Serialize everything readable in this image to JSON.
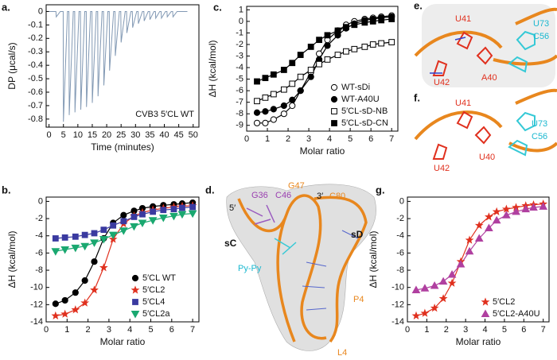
{
  "chart_data": [
    {
      "type": "line",
      "panel": "a.",
      "xlabel": "Time (minutes)",
      "ylabel": "DP (μcal/s)",
      "annotation": "CVB3 5′CL WT",
      "color": "#8299b4",
      "xlim": [
        -1,
        52
      ],
      "ylim": [
        -0.86,
        0.05
      ],
      "xticks": [
        0,
        5,
        10,
        15,
        20,
        25,
        30,
        35,
        40,
        45,
        50
      ],
      "yticks": [
        0,
        -0.1,
        -0.2,
        -0.3,
        -0.4,
        -0.5,
        -0.6,
        -0.7,
        -0.8
      ],
      "x": [
        0,
        2.4,
        2.5,
        3.9,
        4.9,
        5,
        6.4,
        6.9,
        7,
        8.4,
        8.9,
        9,
        10.4,
        10.9,
        11,
        12.4,
        12.9,
        13,
        14.4,
        14.9,
        15,
        16.4,
        16.9,
        17,
        18.4,
        18.9,
        19,
        20.4,
        20.9,
        21,
        22.4,
        22.9,
        23,
        24.4,
        24.9,
        25,
        26.4,
        26.9,
        27,
        28.4,
        28.9,
        29,
        30.4,
        30.9,
        31,
        32.4,
        32.9,
        33,
        34.4,
        34.9,
        35,
        36.4,
        36.9,
        37,
        38.4,
        38.9,
        39,
        40.4,
        40.9,
        41,
        42.4,
        42.9,
        43,
        44.4,
        48
      ],
      "values": [
        0,
        0,
        -0.04,
        0,
        0,
        -0.82,
        0,
        0,
        -0.77,
        0,
        0,
        -0.75,
        0,
        0,
        -0.73,
        0,
        0,
        -0.71,
        0,
        0,
        -0.68,
        0,
        0,
        -0.63,
        0,
        0,
        -0.55,
        0,
        0,
        -0.44,
        0,
        0,
        -0.33,
        0,
        0,
        -0.23,
        0,
        0,
        -0.16,
        0,
        0,
        -0.12,
        0,
        0,
        -0.09,
        0,
        0,
        -0.07,
        0,
        0,
        -0.06,
        0,
        0,
        -0.05,
        0,
        0,
        -0.05,
        0,
        0,
        -0.04,
        0,
        0,
        -0.04,
        0,
        0
      ]
    },
    {
      "type": "scatter",
      "panel": "b.",
      "xlabel": "Molar ratio",
      "ylabel": "ΔH (kcal/mol)",
      "legend": "lower right",
      "xlim": [
        0,
        7.3
      ],
      "ylim": [
        -14,
        0.5
      ],
      "xticks": [
        0,
        1,
        2,
        3,
        4,
        5,
        6,
        7
      ],
      "yticks": [
        0,
        -2,
        -4,
        -6,
        -8,
        -10,
        -12,
        -14
      ],
      "x": [
        0.45,
        0.9,
        1.4,
        1.85,
        2.3,
        2.75,
        3.2,
        3.7,
        4.2,
        4.6,
        5.1,
        5.6,
        6.1,
        6.5,
        7.0
      ],
      "series": [
        {
          "name": "5′CL WT",
          "color": "#000000",
          "marker": "circle",
          "filled": true,
          "values": [
            -11.9,
            -11.5,
            -10.6,
            -9.2,
            -7,
            -4.3,
            -2.5,
            -1.6,
            -1.1,
            -0.8,
            -0.6,
            -0.45,
            -0.35,
            -0.25,
            -0.15
          ]
        },
        {
          "name": "5′CL2",
          "color": "#e0301e",
          "marker": "star",
          "filled": true,
          "values": [
            -13.3,
            -13.1,
            -12.6,
            -11.8,
            -10.3,
            -7.7,
            -4.4,
            -2.6,
            -1.7,
            -1.3,
            -1,
            -0.8,
            -0.65,
            -0.55,
            -0.5
          ]
        },
        {
          "name": "5′CL4",
          "color": "#3a3aa0",
          "marker": "square",
          "filled": true,
          "values": [
            -4.3,
            -4.2,
            -4.1,
            -3.9,
            -3.7,
            -3.3,
            -2.8,
            -2.3,
            -1.8,
            -1.5,
            -1.2,
            -1.0,
            -0.9,
            -0.75,
            -0.65
          ]
        },
        {
          "name": "5′CL2a",
          "color": "#1aa870",
          "marker": "triangle-down",
          "filled": true,
          "values": [
            -5.8,
            -5.6,
            -5.4,
            -5.2,
            -4.8,
            -4.4,
            -3.9,
            -3.4,
            -2.9,
            -2.5,
            -2.2,
            -1.9,
            -1.7,
            -1.5,
            -1.4
          ]
        }
      ]
    },
    {
      "type": "scatter",
      "panel": "c.",
      "xlabel": "Molar ratio",
      "ylabel": "ΔH (kcal/mol)",
      "legend": "lower right",
      "xlim": [
        0,
        7.3
      ],
      "ylim": [
        -9.5,
        1.3
      ],
      "xticks": [
        0,
        1,
        2,
        3,
        4,
        5,
        6,
        7
      ],
      "yticks": [
        1,
        0,
        -1,
        -2,
        -3,
        -4,
        -5,
        -6,
        -7,
        -8,
        -9
      ],
      "x": [
        0.5,
        0.9,
        1.3,
        1.8,
        2.2,
        2.6,
        3.1,
        3.5,
        3.9,
        4.4,
        4.8,
        5.2,
        5.7,
        6.1,
        6.5,
        7.0
      ],
      "series": [
        {
          "name": "WT-sDi",
          "color": "#000000",
          "marker": "circle",
          "filled": false,
          "values": [
            -8.8,
            -8.8,
            -8.5,
            -8.0,
            -7.3,
            -6.0,
            -4.4,
            -2.8,
            -1.6,
            -0.8,
            -0.3,
            0,
            0.2,
            0.3,
            0.4,
            0.5
          ]
        },
        {
          "name": "WT-A40U",
          "color": "#000000",
          "marker": "circle",
          "filled": true,
          "values": [
            -7.9,
            -7.8,
            -7.6,
            -7.3,
            -6.8,
            -6.0,
            -4.8,
            -3.3,
            -2.1,
            -1.2,
            -0.6,
            -0.2,
            0.1,
            0.2,
            0.3,
            0.4
          ]
        },
        {
          "name": "5′CL-sD-NB",
          "color": "#000000",
          "marker": "square",
          "filled": false,
          "values": [
            -6.9,
            -6.6,
            -6.3,
            -5.9,
            -5.4,
            -4.8,
            -4.2,
            -3.7,
            -3.3,
            -2.9,
            -2.6,
            -2.4,
            -2.2,
            -2.0,
            -1.9,
            -1.8
          ]
        },
        {
          "name": "5′CL-sD-CN",
          "color": "#000000",
          "marker": "square",
          "filled": true,
          "values": [
            -5.2,
            -4.9,
            -4.6,
            -4.2,
            -3.6,
            -2.9,
            -2.2,
            -1.6,
            -1.2,
            -0.8,
            -0.5,
            -0.3,
            -0.1,
            0.0,
            0.1,
            0.2
          ]
        }
      ]
    },
    {
      "type": "scatter",
      "panel": "g.",
      "xlabel": "Molar ratio",
      "ylabel": "ΔH (kcal/mol)",
      "legend": "lower right",
      "xlim": [
        0,
        7.3
      ],
      "ylim": [
        -14,
        0.5
      ],
      "xticks": [
        0,
        1,
        2,
        3,
        4,
        5,
        6,
        7
      ],
      "yticks": [
        0,
        -2,
        -4,
        -6,
        -8,
        -10,
        -12,
        -14
      ],
      "x": [
        0.45,
        0.9,
        1.4,
        1.85,
        2.3,
        2.75,
        3.2,
        3.7,
        4.2,
        4.6,
        5.1,
        5.6,
        6.1,
        6.5,
        7.0
      ],
      "series": [
        {
          "name": "5′CL2",
          "color": "#e0301e",
          "marker": "star",
          "filled": true,
          "values": [
            -13.3,
            -13.0,
            -12.4,
            -11.3,
            -9.5,
            -7.0,
            -4.5,
            -2.8,
            -1.8,
            -1.2,
            -0.9,
            -0.7,
            -0.5,
            -0.4,
            -0.3
          ]
        },
        {
          "name": "5′CL2-A40U",
          "color": "#b040a0",
          "marker": "triangle",
          "filled": true,
          "values": [
            -10.3,
            -10.1,
            -9.8,
            -9.3,
            -8.5,
            -7.3,
            -5.8,
            -4.3,
            -3.1,
            -2.2,
            -1.6,
            -1.2,
            -0.9,
            -0.7,
            -0.6
          ]
        }
      ]
    }
  ],
  "structures": [
    {
      "panel": "d.",
      "labels": [
        "5′",
        "G36",
        "C46",
        "G47",
        "3′",
        "C80",
        "sC",
        "sD",
        "Py-Py",
        "P4",
        "L4"
      ]
    },
    {
      "panel": "e.",
      "labels": [
        "U41",
        "U73",
        "C56",
        "A40",
        "U42"
      ]
    },
    {
      "panel": "f.",
      "labels": [
        "U41",
        "U73",
        "C56",
        "U40",
        "U42"
      ]
    }
  ]
}
